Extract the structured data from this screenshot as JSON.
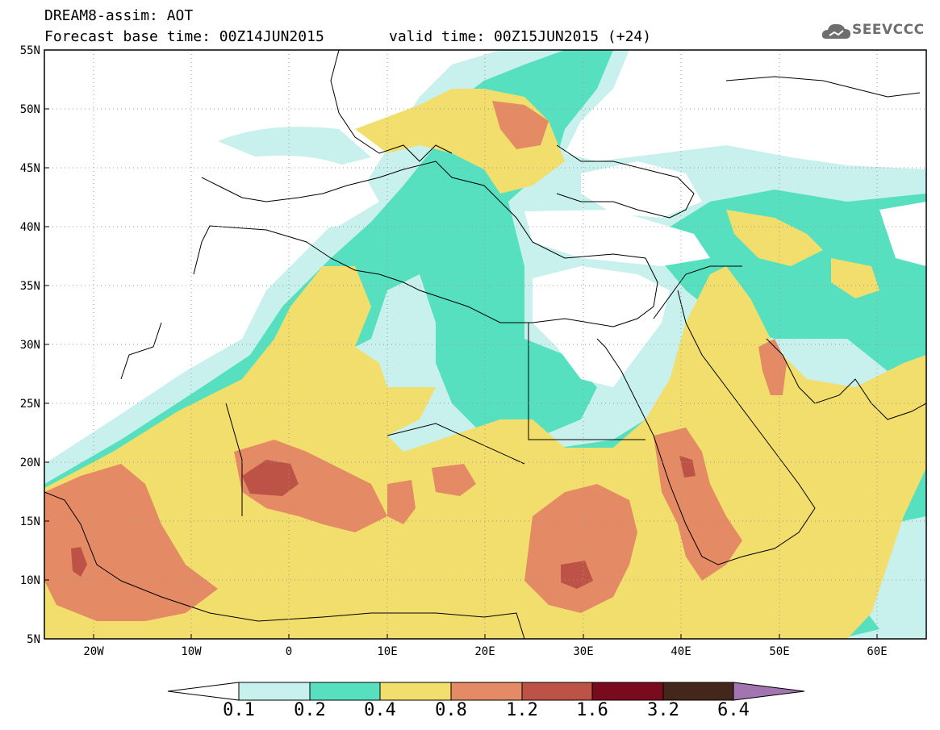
{
  "header": {
    "line1": "DREAM8-assim: AOT",
    "base_time": "Forecast base time: 00Z14JUN2015",
    "valid_time": "valid time: 00Z15JUN2015 (+24)"
  },
  "logo": {
    "text": "SEEVCCC",
    "icon": "cloud-icon"
  },
  "map": {
    "projection": "lat-lon",
    "lon_range": [
      -25,
      65
    ],
    "lat_range": [
      5,
      55
    ],
    "lat_ticks": [
      "55N",
      "50N",
      "45N",
      "40N",
      "35N",
      "30N",
      "25N",
      "20N",
      "15N",
      "10N",
      "5N"
    ],
    "lon_ticks": [
      "20W",
      "10W",
      "0",
      "10E",
      "20E",
      "30E",
      "40E",
      "50E",
      "60E"
    ]
  },
  "colorbar": {
    "labels": [
      "0.1",
      "0.2",
      "0.4",
      "0.8",
      "1.2",
      "1.6",
      "3.2",
      "6.4"
    ],
    "colors": [
      "#c8f0ec",
      "#57e0c0",
      "#f2de6c",
      "#e48a64",
      "#bc5346",
      "#7a0a1e",
      "#44271a",
      "#a275b0"
    ]
  }
}
